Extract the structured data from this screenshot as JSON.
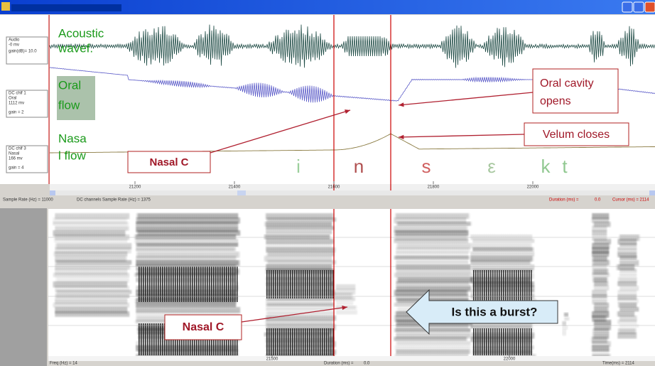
{
  "waveform_window": {
    "channel_labels": [
      [
        "Audio",
        "-0    mv",
        "gain(dB)=   10.0"
      ],
      [
        "DC chlf 1",
        "Oral",
        "1112   mv",
        "gain =  2"
      ],
      [
        "DC chlf 3",
        "Nasal",
        "166    mv",
        "gain =  4"
      ]
    ],
    "trace_labels": [
      [
        "Acoustic",
        "wavef."
      ],
      [
        "Oral",
        "flow"
      ],
      [
        "Nasa",
        "l flow"
      ]
    ],
    "annotations": {
      "oral_cavity": [
        "Oral cavity",
        "opens"
      ],
      "velum": "Velum closes",
      "nasal_c": "Nasal C"
    },
    "phonemes": [
      "i",
      "n",
      "s",
      "ε",
      "k",
      "t"
    ],
    "time_ticks": [
      21200,
      21400,
      21600,
      21800,
      22000
    ],
    "status": [
      "Sample Rate (Hz) = 11000",
      "DC channels Sample Rate (Hz) = 1375",
      "Duration (ms) =",
      "0.0",
      "Cursor (ms) = 2114"
    ]
  },
  "spectrogram_window": {
    "time_ticks": [
      21500,
      22000
    ],
    "annotations": {
      "nasal_c": "Nasal C",
      "question": "Is this a burst?"
    },
    "status": [
      "Freq (Hz) = 14",
      "Duration (ms) =",
      "0.0",
      "Time(ms) =  2114"
    ]
  }
}
